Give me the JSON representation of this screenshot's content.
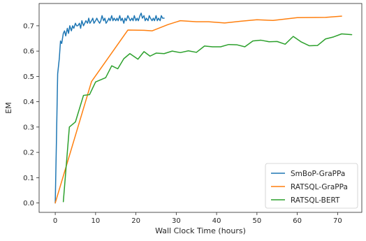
{
  "chart_data": {
    "type": "line",
    "xlabel": "Wall Clock Time (hours)",
    "ylabel": "EM",
    "xlim": [
      -4,
      76
    ],
    "ylim": [
      -0.037,
      0.788
    ],
    "xticks": [
      0,
      10,
      20,
      30,
      40,
      50,
      60,
      70
    ],
    "yticks": [
      0.0,
      0.1,
      0.2,
      0.3,
      0.4,
      0.5,
      0.6,
      0.7
    ],
    "ytick_labels": [
      "0.0",
      "0.1",
      "0.2",
      "0.3",
      "0.4",
      "0.5",
      "0.6",
      "0.7"
    ],
    "grid": false,
    "legend_position": "lower-right",
    "series": [
      {
        "name": "SmBoP-GraPPa",
        "color": "#1f77b4",
        "x": [
          0.0,
          0.3,
          0.6,
          1.0,
          1.3,
          1.6,
          2.0,
          2.3,
          2.6,
          3.0,
          3.3,
          3.6,
          4.0,
          4.3,
          4.6,
          5.0,
          5.3,
          5.6,
          6.0,
          6.3,
          6.6,
          7.0,
          7.3,
          7.6,
          8.0,
          8.3,
          8.6,
          9.0,
          9.3,
          9.6,
          10.0,
          10.3,
          10.6,
          11.0,
          11.3,
          11.6,
          12.0,
          12.3,
          12.6,
          13.0,
          13.3,
          13.6,
          14.0,
          14.3,
          14.6,
          15.0,
          15.3,
          15.6,
          16.0,
          16.3,
          16.6,
          17.0,
          17.3,
          17.6,
          18.0,
          18.3,
          18.6,
          19.0,
          19.3,
          19.6,
          20.0,
          20.3,
          20.6,
          21.0,
          21.3,
          21.6,
          22.0,
          22.3,
          22.6,
          23.0,
          23.3,
          23.6,
          24.0,
          24.3,
          24.6,
          25.0,
          25.3,
          25.6,
          26.0,
          26.3,
          26.6,
          27.0
        ],
        "y": [
          0.0,
          0.25,
          0.51,
          0.57,
          0.64,
          0.63,
          0.67,
          0.68,
          0.66,
          0.69,
          0.67,
          0.7,
          0.68,
          0.7,
          0.69,
          0.71,
          0.7,
          0.7,
          0.71,
          0.69,
          0.72,
          0.7,
          0.71,
          0.72,
          0.71,
          0.73,
          0.71,
          0.72,
          0.73,
          0.71,
          0.72,
          0.73,
          0.72,
          0.71,
          0.72,
          0.74,
          0.72,
          0.73,
          0.71,
          0.72,
          0.73,
          0.72,
          0.74,
          0.72,
          0.73,
          0.72,
          0.73,
          0.72,
          0.74,
          0.72,
          0.73,
          0.71,
          0.73,
          0.72,
          0.74,
          0.73,
          0.72,
          0.73,
          0.72,
          0.74,
          0.72,
          0.73,
          0.72,
          0.74,
          0.75,
          0.73,
          0.74,
          0.72,
          0.73,
          0.72,
          0.74,
          0.73,
          0.72,
          0.73,
          0.72,
          0.74,
          0.72,
          0.73,
          0.72,
          0.74,
          0.73,
          0.73
        ]
      },
      {
        "name": "RATSQL-GraPPa",
        "color": "#ff7f0e",
        "x": [
          0.0,
          9.0,
          18.0,
          22.0,
          24.0,
          28.0,
          31.0,
          35.0,
          38.0,
          42.0,
          46.0,
          50.0,
          54.0,
          60.0,
          67.0,
          71.0
        ],
        "y": [
          0.0,
          0.48,
          0.683,
          0.682,
          0.68,
          0.705,
          0.72,
          0.716,
          0.716,
          0.711,
          0.718,
          0.724,
          0.721,
          0.732,
          0.733,
          0.738
        ]
      },
      {
        "name": "RATSQL-BERT",
        "color": "#2ca02c",
        "x": [
          2.0,
          3.5,
          5.0,
          7.0,
          8.5,
          10.0,
          12.5,
          14.0,
          15.5,
          17.0,
          18.5,
          20.5,
          22.0,
          23.5,
          25.0,
          27.0,
          29.0,
          31.0,
          33.0,
          35.0,
          37.0,
          39.0,
          41.0,
          43.0,
          45.0,
          47.0,
          49.0,
          51.0,
          53.0,
          55.0,
          57.0,
          59.0,
          61.0,
          63.0,
          65.0,
          67.0,
          69.0,
          71.0,
          73.5
        ],
        "y": [
          0.005,
          0.3,
          0.32,
          0.425,
          0.428,
          0.478,
          0.495,
          0.542,
          0.53,
          0.57,
          0.59,
          0.568,
          0.598,
          0.58,
          0.592,
          0.59,
          0.6,
          0.594,
          0.601,
          0.595,
          0.62,
          0.617,
          0.617,
          0.626,
          0.625,
          0.617,
          0.64,
          0.643,
          0.637,
          0.638,
          0.627,
          0.658,
          0.636,
          0.621,
          0.622,
          0.648,
          0.656,
          0.668,
          0.665
        ]
      }
    ]
  }
}
